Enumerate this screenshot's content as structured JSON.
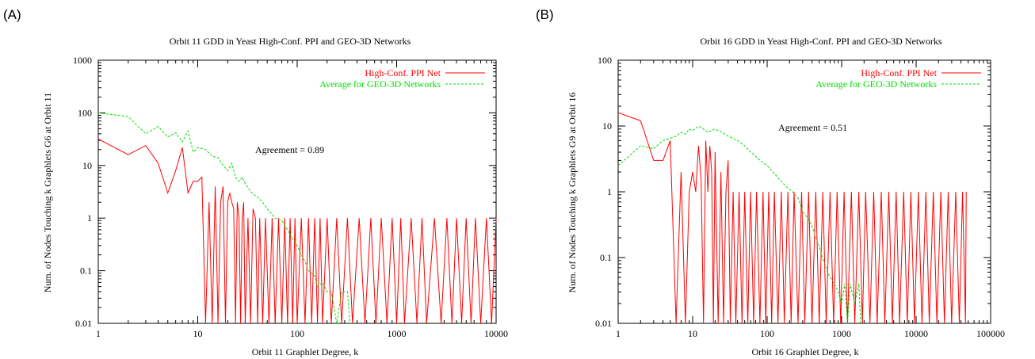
{
  "panels": [
    {
      "letter": "(A)",
      "annotation": "Agreement = 0.89"
    },
    {
      "letter": "(B)",
      "annotation": "Agreement = 0.51"
    }
  ],
  "chart_data": [
    {
      "type": "line",
      "title": "Orbit 11 GDD in Yeast High-Conf. PPI and GEO-3D Networks",
      "xlabel": "Orbit 11 Graphlet Degree, k",
      "ylabel": "Num. of Nodes Touching k Graphlets G6 at Orbit 11",
      "xscale": "log",
      "yscale": "log",
      "xlim": [
        1,
        10000
      ],
      "ylim": [
        0.01,
        1000
      ],
      "xticks": [
        "1",
        "10",
        "100",
        "1000",
        "10000"
      ],
      "yticks": [
        "0.01",
        "0.1",
        "1",
        "10",
        "100",
        "1000"
      ],
      "legend_position": "top-right",
      "series": [
        {
          "name": "High-Conf. PPI Net",
          "color": "#ff0000",
          "style": "solid",
          "points": [
            [
              1,
              32
            ],
            [
              2,
              16
            ],
            [
              3,
              24
            ],
            [
              4,
              11
            ],
            [
              5,
              3
            ],
            [
              6,
              8
            ],
            [
              7,
              22
            ],
            [
              8,
              3
            ],
            [
              9,
              5
            ],
            [
              10,
              5
            ],
            [
              11,
              6
            ],
            [
              12,
              0.01
            ],
            [
              13,
              2
            ],
            [
              14,
              0.01
            ],
            [
              15,
              4
            ],
            [
              16,
              0.01
            ],
            [
              17,
              2
            ],
            [
              18,
              4
            ],
            [
              19,
              0.01
            ],
            [
              20,
              2
            ],
            [
              21,
              3
            ],
            [
              22,
              2
            ],
            [
              23,
              1.5
            ],
            [
              24,
              0.01
            ],
            [
              25,
              2
            ],
            [
              26,
              1
            ],
            [
              27,
              0.01
            ],
            [
              28,
              1
            ],
            [
              29,
              2
            ],
            [
              30,
              0.01
            ],
            [
              32,
              1
            ],
            [
              34,
              0.01
            ],
            [
              36,
              1.5
            ],
            [
              38,
              1
            ],
            [
              40,
              0.01
            ],
            [
              42,
              1
            ],
            [
              45,
              0.01
            ],
            [
              48,
              1
            ],
            [
              52,
              0.01
            ],
            [
              56,
              1
            ],
            [
              60,
              0.01
            ],
            [
              65,
              1
            ],
            [
              70,
              0.01
            ],
            [
              75,
              1
            ],
            [
              80,
              0.01
            ],
            [
              85,
              1
            ],
            [
              90,
              0.01
            ],
            [
              95,
              1
            ],
            [
              100,
              0.01
            ],
            [
              110,
              1
            ],
            [
              120,
              0.01
            ],
            [
              130,
              1
            ],
            [
              140,
              0.01
            ],
            [
              150,
              1
            ],
            [
              160,
              0.01
            ],
            [
              170,
              1
            ],
            [
              180,
              0.01
            ],
            [
              200,
              1
            ],
            [
              220,
              0.01
            ],
            [
              250,
              1
            ],
            [
              280,
              0.01
            ],
            [
              320,
              1
            ],
            [
              360,
              0.01
            ],
            [
              420,
              1
            ],
            [
              480,
              0.01
            ],
            [
              550,
              1
            ],
            [
              620,
              0.01
            ],
            [
              700,
              1
            ],
            [
              800,
              0.01
            ],
            [
              900,
              1
            ],
            [
              1000,
              0.01
            ],
            [
              1100,
              1
            ],
            [
              1200,
              0.01
            ],
            [
              1400,
              1
            ],
            [
              1600,
              0.01
            ],
            [
              1800,
              1
            ],
            [
              2000,
              0.01
            ],
            [
              2400,
              1
            ],
            [
              2800,
              0.01
            ],
            [
              3200,
              1
            ],
            [
              3600,
              0.01
            ],
            [
              4000,
              1
            ],
            [
              4500,
              0.01
            ],
            [
              5000,
              1
            ],
            [
              5600,
              0.01
            ],
            [
              6200,
              1
            ],
            [
              7000,
              0.01
            ],
            [
              8000,
              1
            ],
            [
              9000,
              0.01
            ],
            [
              10000,
              1
            ]
          ]
        },
        {
          "name": "Average for GEO-3D Networks",
          "color": "#00dd00",
          "style": "dashed",
          "points": [
            [
              1,
              100
            ],
            [
              2,
              85
            ],
            [
              3,
              40
            ],
            [
              4,
              55
            ],
            [
              5,
              35
            ],
            [
              6,
              42
            ],
            [
              7,
              28
            ],
            [
              8,
              45
            ],
            [
              9,
              18
            ],
            [
              10,
              22
            ],
            [
              12,
              20
            ],
            [
              14,
              15
            ],
            [
              16,
              14
            ],
            [
              18,
              10
            ],
            [
              20,
              8
            ],
            [
              22,
              11
            ],
            [
              24,
              6
            ],
            [
              26,
              5
            ],
            [
              28,
              6
            ],
            [
              30,
              4.5
            ],
            [
              35,
              3
            ],
            [
              40,
              2.5
            ],
            [
              45,
              2
            ],
            [
              50,
              1.5
            ],
            [
              60,
              1
            ],
            [
              70,
              0.9
            ],
            [
              80,
              0.6
            ],
            [
              90,
              0.4
            ],
            [
              100,
              0.3
            ],
            [
              110,
              0.2
            ],
            [
              120,
              0.15
            ],
            [
              130,
              0.1
            ],
            [
              150,
              0.08
            ],
            [
              160,
              0.05
            ],
            [
              180,
              0.06
            ],
            [
              200,
              0.04
            ],
            [
              220,
              0.04
            ],
            [
              250,
              0.01
            ],
            [
              280,
              0.04
            ],
            [
              320,
              0.04
            ],
            [
              340,
              0.01
            ]
          ]
        }
      ]
    },
    {
      "type": "line",
      "title": "Orbit 16 GDD in Yeast High-Conf. PPI and GEO-3D Networks",
      "xlabel": "Orbit 16 Graphlet Degree, k",
      "ylabel": "Num. of Nodes Touching k Graphlets G9 at Orbit 16",
      "xscale": "log",
      "yscale": "log",
      "xlim": [
        1,
        100000
      ],
      "ylim": [
        0.01,
        100
      ],
      "xticks": [
        "1",
        "10",
        "100",
        "1000",
        "10000",
        "100000"
      ],
      "yticks": [
        "0.01",
        "0.1",
        "1",
        "10",
        "100"
      ],
      "legend_position": "top-right",
      "series": [
        {
          "name": "High-Conf. PPI Net",
          "color": "#ff0000",
          "style": "solid",
          "points": [
            [
              1,
              16
            ],
            [
              2,
              12
            ],
            [
              3,
              3
            ],
            [
              4,
              3
            ],
            [
              5,
              6
            ],
            [
              6,
              0.01
            ],
            [
              7,
              2
            ],
            [
              8,
              0.01
            ],
            [
              9,
              1
            ],
            [
              10,
              2
            ],
            [
              11,
              1
            ],
            [
              12,
              5
            ],
            [
              13,
              1.5
            ],
            [
              14,
              0.01
            ],
            [
              15,
              6
            ],
            [
              16,
              1
            ],
            [
              17,
              5
            ],
            [
              18,
              2
            ],
            [
              19,
              0.01
            ],
            [
              20,
              4
            ],
            [
              22,
              0.01
            ],
            [
              24,
              2
            ],
            [
              26,
              0.01
            ],
            [
              28,
              1
            ],
            [
              30,
              3
            ],
            [
              32,
              0.01
            ],
            [
              35,
              1
            ],
            [
              38,
              0.01
            ],
            [
              42,
              1
            ],
            [
              46,
              0.01
            ],
            [
              50,
              1
            ],
            [
              55,
              0.01
            ],
            [
              60,
              1
            ],
            [
              66,
              0.01
            ],
            [
              72,
              1
            ],
            [
              80,
              0.01
            ],
            [
              88,
              1
            ],
            [
              96,
              0.01
            ],
            [
              105,
              1
            ],
            [
              115,
              0.01
            ],
            [
              125,
              1
            ],
            [
              140,
              0.01
            ],
            [
              155,
              1
            ],
            [
              170,
              0.01
            ],
            [
              190,
              1
            ],
            [
              210,
              0.01
            ],
            [
              230,
              1
            ],
            [
              260,
              0.01
            ],
            [
              290,
              1
            ],
            [
              320,
              0.01
            ],
            [
              360,
              1
            ],
            [
              400,
              0.01
            ],
            [
              450,
              1
            ],
            [
              500,
              0.01
            ],
            [
              560,
              1
            ],
            [
              620,
              0.01
            ],
            [
              700,
              1
            ],
            [
              780,
              0.01
            ],
            [
              870,
              1
            ],
            [
              970,
              0.01
            ],
            [
              1080,
              1
            ],
            [
              1200,
              0.01
            ],
            [
              1350,
              1
            ],
            [
              1500,
              0.01
            ],
            [
              1700,
              1
            ],
            [
              1900,
              0.01
            ],
            [
              2100,
              1
            ],
            [
              2400,
              0.01
            ],
            [
              2700,
              1
            ],
            [
              3000,
              0.01
            ],
            [
              3400,
              1
            ],
            [
              3800,
              0.01
            ],
            [
              4300,
              1
            ],
            [
              4800,
              0.01
            ],
            [
              5400,
              1
            ],
            [
              6000,
              0.01
            ],
            [
              6800,
              1
            ],
            [
              7600,
              0.01
            ],
            [
              8500,
              1
            ],
            [
              9500,
              0.01
            ],
            [
              10700,
              1
            ],
            [
              12000,
              0.01
            ],
            [
              13500,
              1
            ],
            [
              15000,
              0.01
            ],
            [
              17000,
              1
            ],
            [
              19000,
              0.01
            ],
            [
              21500,
              1
            ],
            [
              24000,
              0.01
            ],
            [
              27000,
              1
            ],
            [
              30000,
              0.01
            ],
            [
              34000,
              1
            ],
            [
              38000,
              0.01
            ],
            [
              42000,
              1
            ],
            [
              46000,
              0.01
            ],
            [
              47000,
              1
            ]
          ]
        },
        {
          "name": "Average for GEO-3D Networks",
          "color": "#00dd00",
          "style": "dashed",
          "points": [
            [
              1,
              2.5
            ],
            [
              2,
              5
            ],
            [
              3,
              4.5
            ],
            [
              4,
              6
            ],
            [
              5,
              6.5
            ],
            [
              6,
              7
            ],
            [
              7,
              8
            ],
            [
              8,
              7.5
            ],
            [
              9,
              9
            ],
            [
              10,
              8.5
            ],
            [
              12,
              10
            ],
            [
              14,
              9
            ],
            [
              16,
              8
            ],
            [
              18,
              8.5
            ],
            [
              20,
              9
            ],
            [
              25,
              8
            ],
            [
              30,
              7
            ],
            [
              35,
              6.5
            ],
            [
              40,
              6
            ],
            [
              50,
              5
            ],
            [
              60,
              4
            ],
            [
              70,
              3.5
            ],
            [
              80,
              3
            ],
            [
              100,
              2.5
            ],
            [
              120,
              2
            ],
            [
              150,
              1.5
            ],
            [
              180,
              1.2
            ],
            [
              220,
              1
            ],
            [
              260,
              0.8
            ],
            [
              300,
              0.5
            ],
            [
              350,
              0.4
            ],
            [
              400,
              0.3
            ],
            [
              450,
              0.2
            ],
            [
              500,
              0.15
            ],
            [
              550,
              0.1
            ],
            [
              600,
              0.08
            ],
            [
              650,
              0.06
            ],
            [
              700,
              0.05
            ],
            [
              800,
              0.04
            ],
            [
              900,
              0.03
            ],
            [
              1000,
              0.02
            ],
            [
              1100,
              0.04
            ],
            [
              1200,
              0.01
            ],
            [
              1300,
              0.04
            ],
            [
              1500,
              0.02
            ],
            [
              1700,
              0.04
            ],
            [
              1800,
              0.01
            ]
          ]
        }
      ]
    }
  ]
}
